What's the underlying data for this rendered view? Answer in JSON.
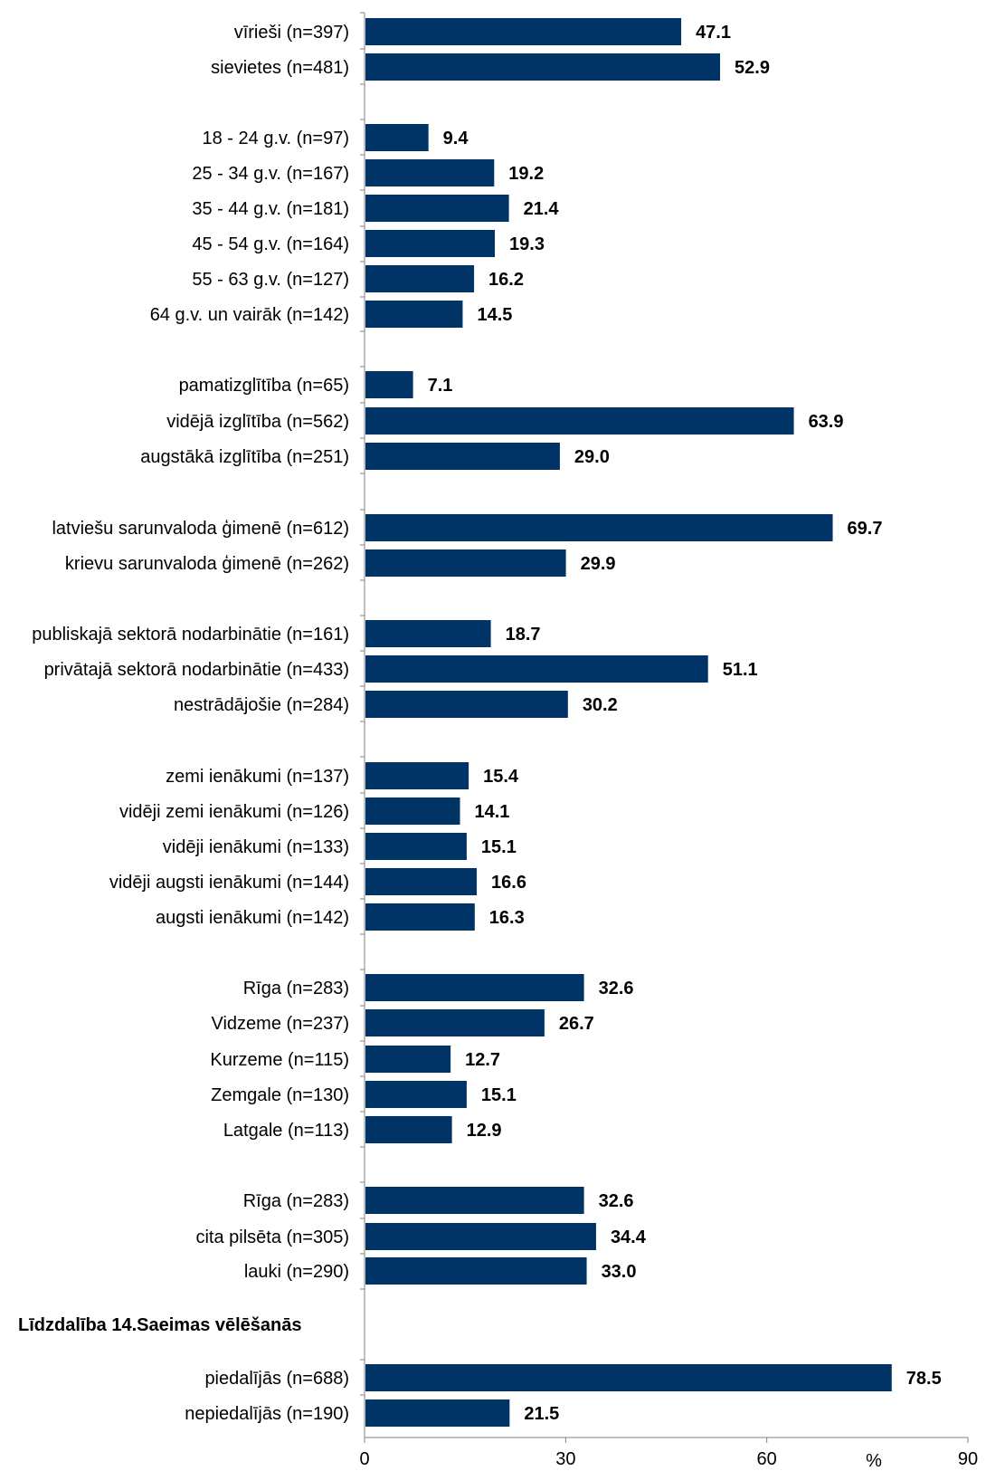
{
  "chart_data": {
    "type": "bar",
    "orientation": "horizontal",
    "bar_color": "#003366",
    "title": "",
    "xlabel": "",
    "ylabel": "",
    "unit_label": "%",
    "xlim": [
      0,
      90
    ],
    "x_ticks": [
      "0",
      "30",
      "60",
      "90"
    ],
    "grid": false,
    "legend": "none",
    "categories": [
      {
        "label": "vīrieši (n=397)",
        "value": 47.1,
        "value_label": "47.1"
      },
      {
        "label": "sievietes (n=481)",
        "value": 52.9,
        "value_label": "52.9"
      },
      {
        "label": "18 - 24 g.v. (n=97)",
        "value": 9.4,
        "value_label": "9.4"
      },
      {
        "label": "25 - 34 g.v. (n=167)",
        "value": 19.2,
        "value_label": "19.2"
      },
      {
        "label": "35 - 44 g.v. (n=181)",
        "value": 21.4,
        "value_label": "21.4"
      },
      {
        "label": "45 - 54 g.v. (n=164)",
        "value": 19.3,
        "value_label": "19.3"
      },
      {
        "label": "55 - 63 g.v. (n=127)",
        "value": 16.2,
        "value_label": "16.2"
      },
      {
        "label": "64 g.v. un vairāk (n=142)",
        "value": 14.5,
        "value_label": "14.5"
      },
      {
        "label": "pamatizglītība (n=65)",
        "value": 7.1,
        "value_label": "7.1"
      },
      {
        "label": "vidējā izglītība (n=562)",
        "value": 63.9,
        "value_label": "63.9"
      },
      {
        "label": "augstākā izglītība (n=251)",
        "value": 29.0,
        "value_label": "29.0"
      },
      {
        "label": "latviešu sarunvaloda ģimenē (n=612)",
        "value": 69.7,
        "value_label": "69.7"
      },
      {
        "label": "krievu sarunvaloda ģimenē (n=262)",
        "value": 29.9,
        "value_label": "29.9"
      },
      {
        "label": "publiskajā sektorā nodarbinātie (n=161)",
        "value": 18.7,
        "value_label": "18.7"
      },
      {
        "label": "privātajā sektorā nodarbinātie (n=433)",
        "value": 51.1,
        "value_label": "51.1"
      },
      {
        "label": "nestrādājošie (n=284)",
        "value": 30.2,
        "value_label": "30.2"
      },
      {
        "label": "zemi ienākumi (n=137)",
        "value": 15.4,
        "value_label": "15.4"
      },
      {
        "label": "vidēji zemi ienākumi (n=126)",
        "value": 14.1,
        "value_label": "14.1"
      },
      {
        "label": "vidēji ienākumi (n=133)",
        "value": 15.1,
        "value_label": "15.1"
      },
      {
        "label": "vidēji augsti ienākumi (n=144)",
        "value": 16.6,
        "value_label": "16.6"
      },
      {
        "label": "augsti ienākumi (n=142)",
        "value": 16.3,
        "value_label": "16.3"
      },
      {
        "label": "Rīga (n=283)",
        "value": 32.6,
        "value_label": "32.6"
      },
      {
        "label": "Vidzeme (n=237)",
        "value": 26.7,
        "value_label": "26.7"
      },
      {
        "label": "Kurzeme (n=115)",
        "value": 12.7,
        "value_label": "12.7"
      },
      {
        "label": "Zemgale (n=130)",
        "value": 15.1,
        "value_label": "15.1"
      },
      {
        "label": "Latgale (n=113)",
        "value": 12.9,
        "value_label": "12.9"
      },
      {
        "label": "Rīga (n=283)",
        "value": 32.6,
        "value_label": "32.6"
      },
      {
        "label": "cita pilsēta (n=305)",
        "value": 34.4,
        "value_label": "34.4"
      },
      {
        "label": "lauki (n=290)",
        "value": 33.0,
        "value_label": "33.0"
      },
      {
        "label": "piedalījās (n=688)",
        "value": 78.5,
        "value_label": "78.5"
      },
      {
        "label": "nepiedalījās (n=190)",
        "value": 21.5,
        "value_label": "21.5"
      }
    ],
    "group_headings": [
      "Līdzdalība 14.Saeimas vēlēšanās"
    ]
  }
}
